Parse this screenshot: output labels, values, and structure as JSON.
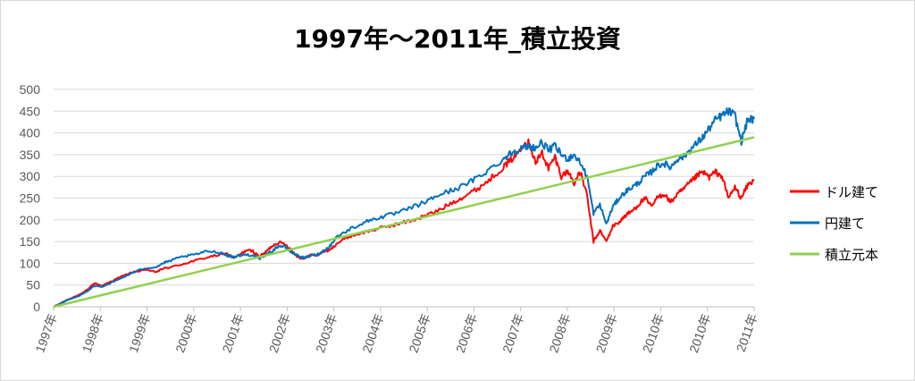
{
  "chart_data": {
    "type": "line",
    "title": "1997年～2011年_積立投資",
    "xlabel": "",
    "ylabel": "",
    "ylim": [
      0,
      500
    ],
    "yticks": [
      "0",
      "50",
      "100",
      "150",
      "200",
      "250",
      "300",
      "350",
      "400",
      "450",
      "500"
    ],
    "categories": [
      "1997年",
      "1998年",
      "1999年",
      "2000年",
      "2001年",
      "2002年",
      "2003年",
      "2004年",
      "2005年",
      "2006年",
      "2007年",
      "2008年",
      "2009年",
      "2010年",
      "2010年",
      "2011年"
    ],
    "grid": true,
    "legend_position": "right",
    "x_count": 169,
    "series": [
      {
        "name": "ドル建て",
        "color": "#ff0000",
        "points": [
          [
            0,
            0
          ],
          [
            4,
            15
          ],
          [
            8,
            28
          ],
          [
            11,
            42
          ],
          [
            12,
            50
          ],
          [
            13,
            54
          ],
          [
            15,
            48
          ],
          [
            17,
            55
          ],
          [
            20,
            66
          ],
          [
            24,
            78
          ],
          [
            28,
            85
          ],
          [
            32,
            80
          ],
          [
            34,
            88
          ],
          [
            36,
            90
          ],
          [
            40,
            98
          ],
          [
            44,
            106
          ],
          [
            48,
            114
          ],
          [
            52,
            120
          ],
          [
            54,
            122
          ],
          [
            56,
            112
          ],
          [
            58,
            120
          ],
          [
            60,
            130
          ],
          [
            62,
            128
          ],
          [
            64,
            115
          ],
          [
            66,
            126
          ],
          [
            68,
            140
          ],
          [
            70,
            148
          ],
          [
            72,
            145
          ],
          [
            74,
            130
          ],
          [
            76,
            115
          ],
          [
            78,
            110
          ],
          [
            80,
            120
          ],
          [
            82,
            118
          ],
          [
            84,
            128
          ],
          [
            86,
            130
          ],
          [
            88,
            145
          ],
          [
            92,
            162
          ],
          [
            96,
            170
          ],
          [
            100,
            178
          ],
          [
            104,
            185
          ],
          [
            108,
            192
          ],
          [
            112,
            200
          ],
          [
            116,
            210
          ],
          [
            120,
            222
          ],
          [
            124,
            240
          ],
          [
            128,
            255
          ],
          [
            132,
            272
          ],
          [
            136,
            295
          ],
          [
            140,
            322
          ],
          [
            142,
            335
          ],
          [
            144,
            350
          ],
          [
            146,
            375
          ],
          [
            148,
            378
          ],
          [
            150,
            330
          ],
          [
            152,
            355
          ],
          [
            154,
            318
          ],
          [
            156,
            345
          ],
          [
            158,
            300
          ],
          [
            160,
            312
          ],
          [
            162,
            285
          ],
          [
            164,
            310
          ],
          [
            166,
            255
          ],
          [
            168,
            150
          ],
          [
            170,
            175
          ],
          [
            172,
            150
          ],
          [
            174,
            185
          ],
          [
            176,
            195
          ],
          [
            178,
            210
          ],
          [
            180,
            220
          ],
          [
            182,
            235
          ],
          [
            184,
            250
          ],
          [
            186,
            230
          ],
          [
            188,
            252
          ],
          [
            190,
            260
          ],
          [
            192,
            240
          ],
          [
            194,
            258
          ],
          [
            196,
            270
          ],
          [
            198,
            285
          ],
          [
            200,
            300
          ],
          [
            202,
            310
          ],
          [
            204,
            298
          ],
          [
            206,
            310
          ],
          [
            208,
            300
          ],
          [
            210,
            250
          ],
          [
            212,
            275
          ],
          [
            214,
            250
          ],
          [
            216,
            280
          ],
          [
            218,
            290
          ]
        ]
      },
      {
        "name": "円建て",
        "color": "#0070c0",
        "points": [
          [
            0,
            0
          ],
          [
            4,
            14
          ],
          [
            8,
            25
          ],
          [
            11,
            38
          ],
          [
            12,
            45
          ],
          [
            13,
            48
          ],
          [
            15,
            46
          ],
          [
            17,
            52
          ],
          [
            20,
            62
          ],
          [
            24,
            76
          ],
          [
            28,
            88
          ],
          [
            32,
            92
          ],
          [
            34,
            100
          ],
          [
            36,
            105
          ],
          [
            40,
            115
          ],
          [
            44,
            120
          ],
          [
            48,
            128
          ],
          [
            52,
            125
          ],
          [
            54,
            118
          ],
          [
            56,
            115
          ],
          [
            58,
            118
          ],
          [
            60,
            120
          ],
          [
            62,
            118
          ],
          [
            64,
            110
          ],
          [
            66,
            120
          ],
          [
            68,
            128
          ],
          [
            70,
            140
          ],
          [
            72,
            138
          ],
          [
            74,
            125
          ],
          [
            76,
            118
          ],
          [
            78,
            112
          ],
          [
            80,
            118
          ],
          [
            82,
            120
          ],
          [
            84,
            128
          ],
          [
            86,
            140
          ],
          [
            88,
            160
          ],
          [
            92,
            178
          ],
          [
            96,
            192
          ],
          [
            100,
            203
          ],
          [
            104,
            210
          ],
          [
            108,
            218
          ],
          [
            112,
            230
          ],
          [
            116,
            242
          ],
          [
            120,
            258
          ],
          [
            124,
            268
          ],
          [
            128,
            280
          ],
          [
            132,
            298
          ],
          [
            136,
            318
          ],
          [
            140,
            340
          ],
          [
            142,
            352
          ],
          [
            144,
            360
          ],
          [
            146,
            365
          ],
          [
            148,
            370
          ],
          [
            150,
            365
          ],
          [
            152,
            378
          ],
          [
            154,
            360
          ],
          [
            156,
            370
          ],
          [
            158,
            350
          ],
          [
            160,
            340
          ],
          [
            162,
            350
          ],
          [
            164,
            330
          ],
          [
            166,
            300
          ],
          [
            168,
            215
          ],
          [
            170,
            235
          ],
          [
            172,
            190
          ],
          [
            174,
            230
          ],
          [
            176,
            250
          ],
          [
            178,
            265
          ],
          [
            180,
            275
          ],
          [
            182,
            285
          ],
          [
            184,
            300
          ],
          [
            186,
            310
          ],
          [
            188,
            325
          ],
          [
            190,
            330
          ],
          [
            192,
            320
          ],
          [
            194,
            340
          ],
          [
            196,
            345
          ],
          [
            198,
            360
          ],
          [
            200,
            375
          ],
          [
            202,
            390
          ],
          [
            204,
            410
          ],
          [
            206,
            430
          ],
          [
            208,
            440
          ],
          [
            210,
            450
          ],
          [
            212,
            440
          ],
          [
            214,
            380
          ],
          [
            216,
            430
          ],
          [
            218,
            432
          ]
        ]
      },
      {
        "name": "積立元本",
        "color": "#92d050",
        "points": [
          [
            0,
            0
          ],
          [
            218,
            390
          ]
        ]
      }
    ]
  }
}
